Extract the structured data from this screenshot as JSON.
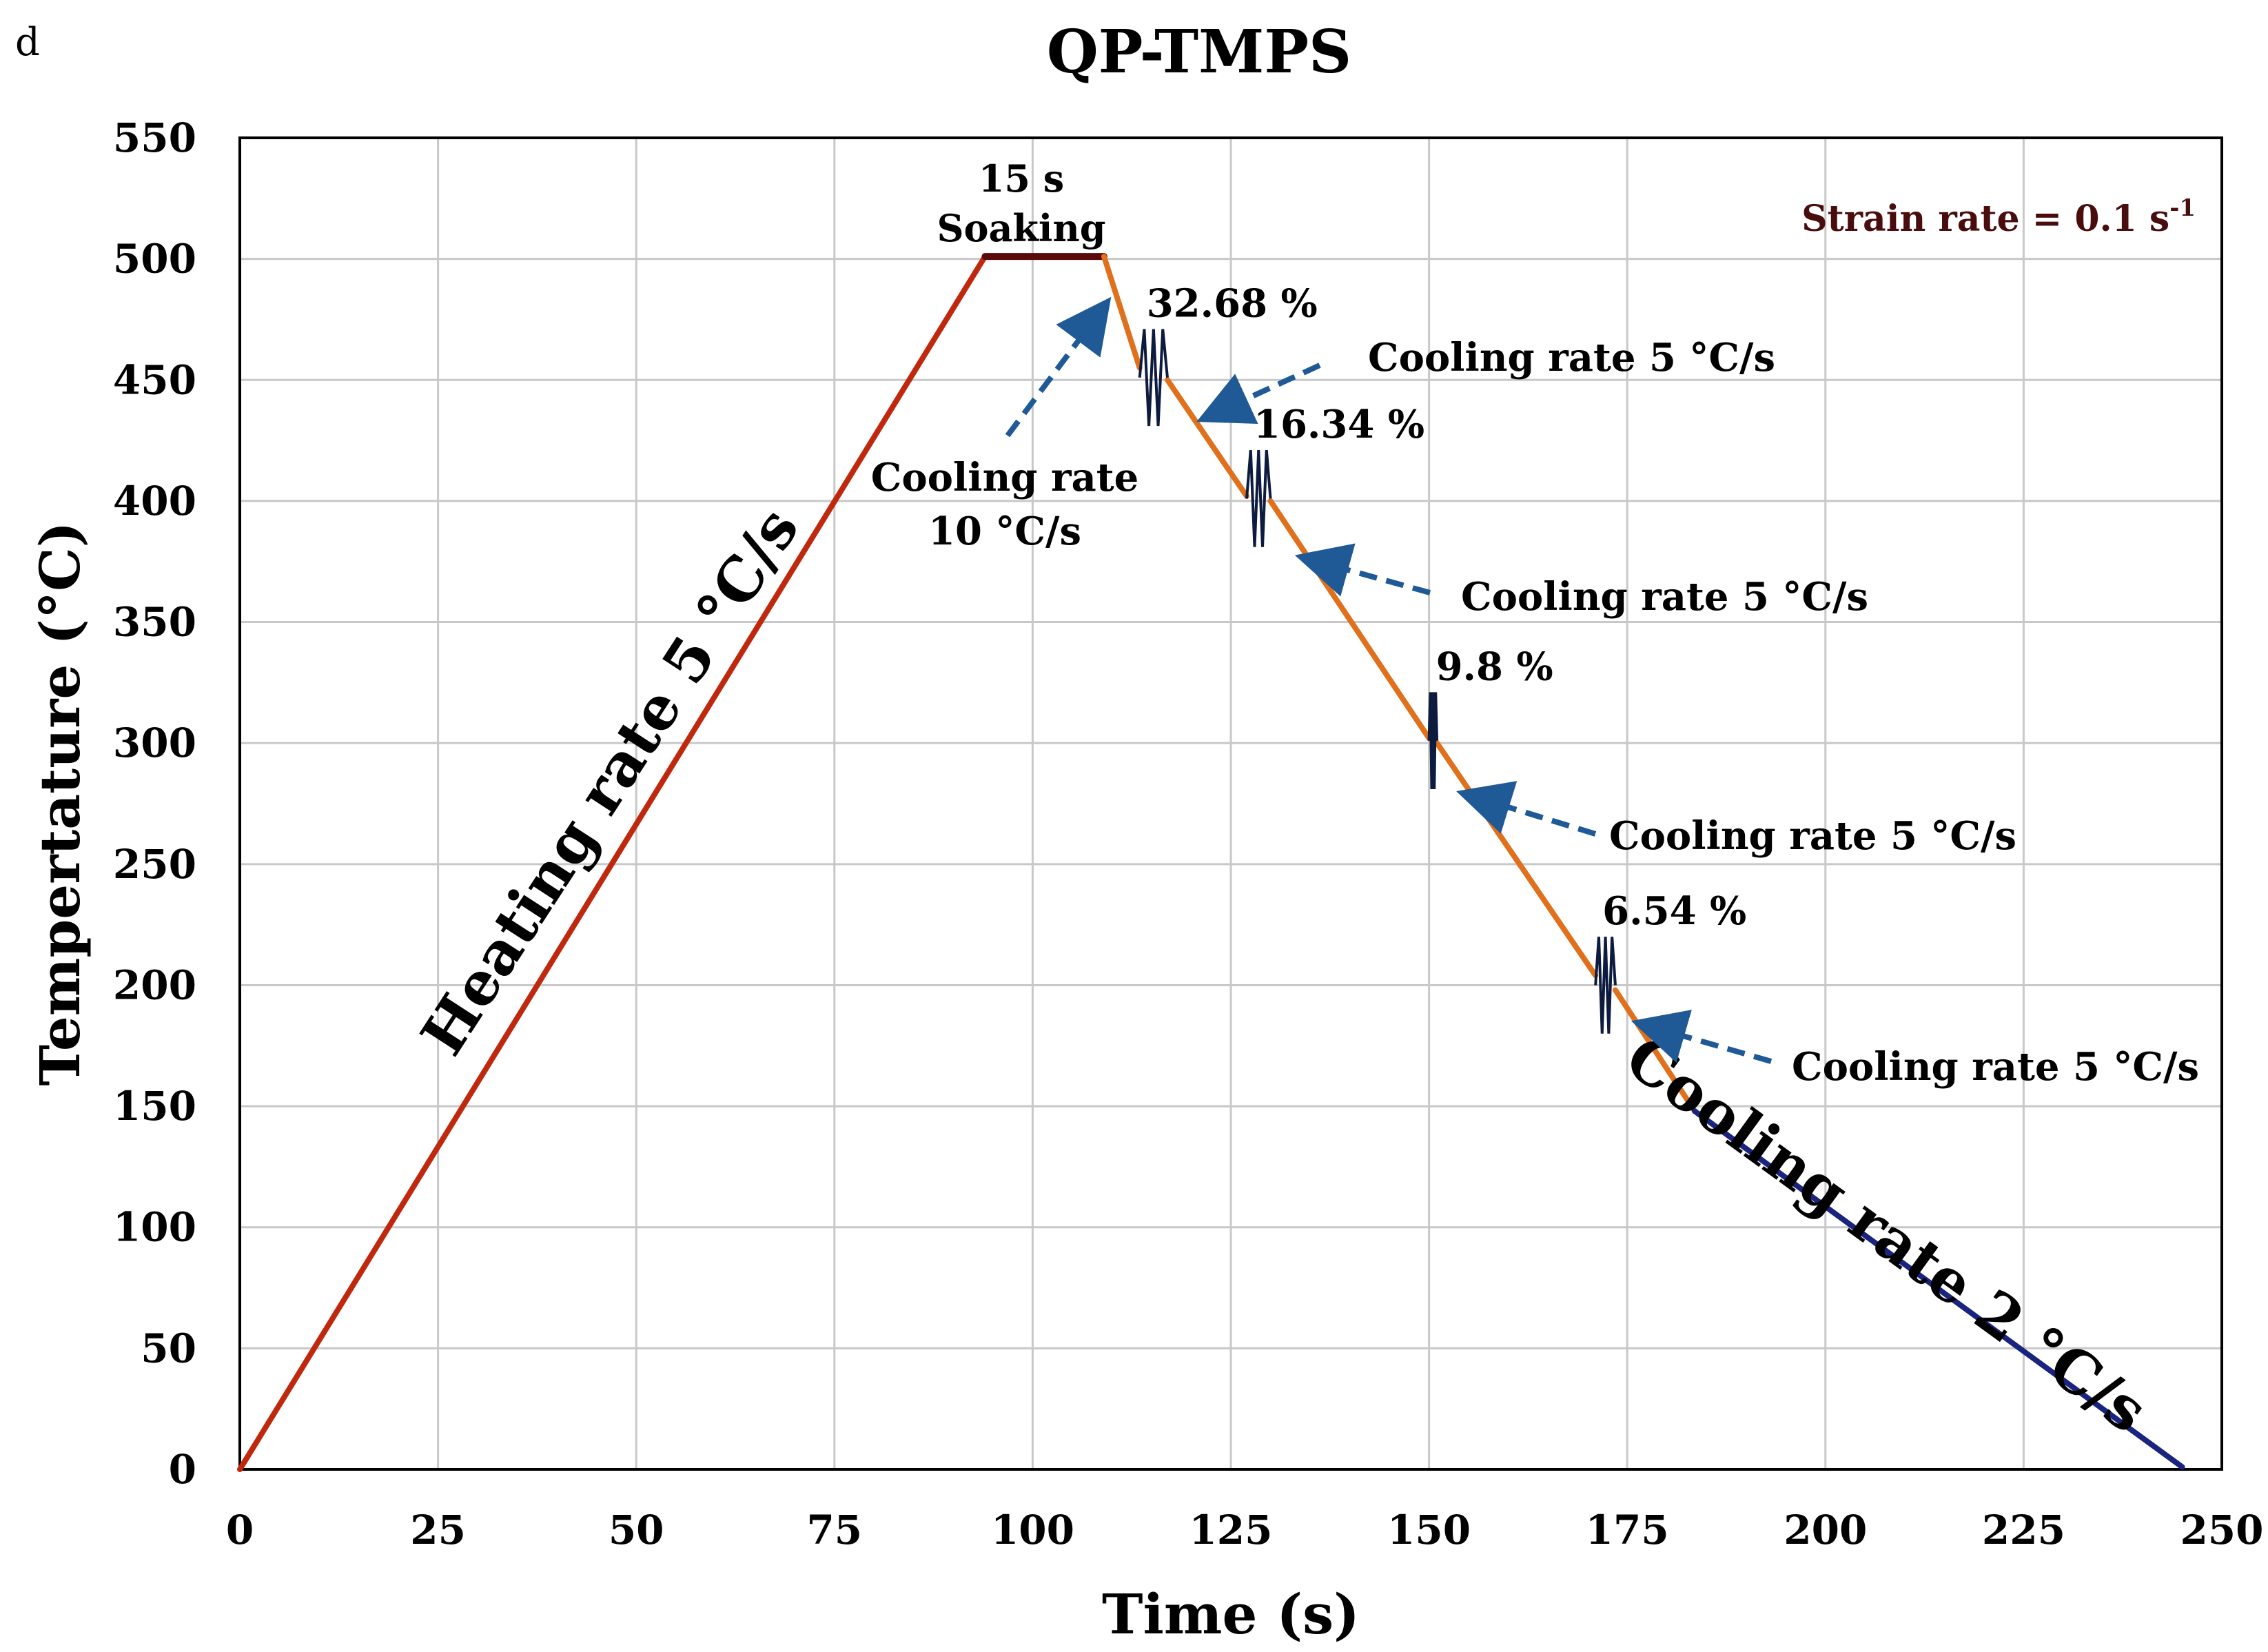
{
  "panel_label": "d",
  "chart_data": {
    "type": "line",
    "title": "QP-TMPS",
    "xlabel": "Time (s)",
    "ylabel": "Tempertature (°C)",
    "xlim": [
      0,
      250
    ],
    "ylim": [
      0,
      550
    ],
    "xticks": [
      0,
      25,
      50,
      75,
      100,
      125,
      150,
      175,
      200,
      225,
      250
    ],
    "yticks": [
      0,
      50,
      100,
      150,
      200,
      250,
      300,
      350,
      400,
      450,
      500,
      550
    ],
    "grid": true,
    "segments": [
      {
        "name": "heating",
        "color": "#c0280e",
        "points": [
          [
            0,
            0
          ],
          [
            94,
            501
          ]
        ]
      },
      {
        "name": "soaking",
        "color": "#5a0a0a",
        "points": [
          [
            94,
            501
          ],
          [
            109,
            501
          ]
        ]
      },
      {
        "name": "cooling-10",
        "color": "#e0701c",
        "points": [
          [
            109,
            501
          ],
          [
            113.5,
            455
          ]
        ]
      },
      {
        "name": "cooling-5-a",
        "color": "#e0701c",
        "points": [
          [
            117,
            450
          ],
          [
            127,
            402
          ]
        ]
      },
      {
        "name": "cooling-5-b",
        "color": "#e0701c",
        "points": [
          [
            130,
            400
          ],
          [
            150,
            302
          ]
        ]
      },
      {
        "name": "cooling-5-c",
        "color": "#e0701c",
        "points": [
          [
            151,
            300
          ],
          [
            171,
            204
          ]
        ]
      },
      {
        "name": "cooling-5-d",
        "color": "#e0701c",
        "points": [
          [
            173.5,
            198
          ],
          [
            183.5,
            148
          ]
        ]
      },
      {
        "name": "cooling-2",
        "color": "#1a237e",
        "points": [
          [
            183.5,
            148
          ],
          [
            245,
            1
          ]
        ]
      }
    ],
    "deformation_zigzags": [
      {
        "label": "32.68 %",
        "x_start": 113.5,
        "x_end": 117,
        "y_min": 431,
        "y_max": 471
      },
      {
        "label": "16.34 %",
        "x_start": 127,
        "x_end": 130,
        "y_min": 381,
        "y_max": 421
      },
      {
        "label": "9.8 %",
        "x_start": 150,
        "x_end": 151,
        "y_min": 281,
        "y_max": 321
      },
      {
        "label": "6.54 %",
        "x_start": 171,
        "x_end": 173.5,
        "y_min": 180,
        "y_max": 220
      }
    ],
    "annotations": {
      "soaking_time": "15 s",
      "soaking": "Soaking",
      "strain_rate": "Strain rate = 0.1 s",
      "strain_rate_exponent": "-1",
      "heating_rate": "Heating rate 5 °C/s",
      "cooling_rate_10_line1": "Cooling rate",
      "cooling_rate_10_line2": "10 °C/s",
      "cooling_rate_5": "Cooling rate 5 °C/s",
      "cooling_rate_2": "Cooling rate 2 °C/s"
    },
    "colors": {
      "heating": "#c0280e",
      "soaking": "#5a0a0a",
      "cooling": "#e0701c",
      "final_cooling": "#1a237e",
      "zigzag": "#0d1b3e",
      "arrow": "#1f5a96",
      "strain_text": "#4a0d0d",
      "grid": "#c8c8c8"
    }
  }
}
